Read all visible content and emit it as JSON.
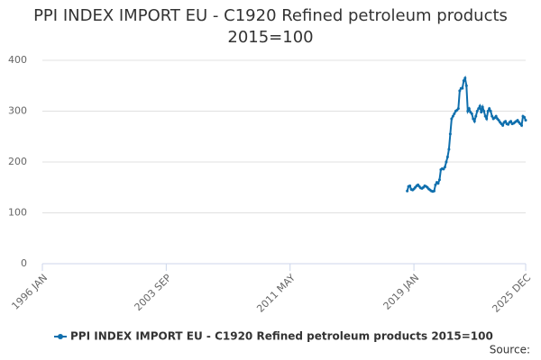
{
  "chart_data": {
    "type": "line",
    "title": "PPI INDEX IMPORT EU - C1920 Refined petroleum products 2015=100",
    "source": "Source:",
    "xlim": [
      "1996 JAN",
      "2025 DEC"
    ],
    "xticks": [
      "1996 JAN",
      "2003 SEP",
      "2011 MAY",
      "2019 JAN",
      "2025 DEC"
    ],
    "ylim": [
      0,
      400
    ],
    "yticks": [
      0,
      100,
      200,
      300,
      400
    ],
    "grid": true,
    "x": [
      "2018 AUG",
      "2018 SEP",
      "2018 OCT",
      "2018 NOV",
      "2018 DEC",
      "2019 JAN",
      "2019 FEB",
      "2019 MAR",
      "2019 APR",
      "2019 MAY",
      "2019 JUN",
      "2019 JUL",
      "2019 AUG",
      "2019 SEP",
      "2019 OCT",
      "2019 NOV",
      "2019 DEC",
      "2020 JAN",
      "2020 FEB",
      "2020 MAR",
      "2020 APR",
      "2020 MAY",
      "2020 JUN",
      "2020 JUL",
      "2020 AUG",
      "2020 SEP",
      "2020 OCT",
      "2020 NOV",
      "2020 DEC",
      "2021 JAN",
      "2021 FEB",
      "2021 MAR",
      "2021 APR",
      "2021 MAY",
      "2021 JUN",
      "2021 JUL",
      "2021 AUG",
      "2021 SEP",
      "2021 OCT",
      "2021 NOV",
      "2021 DEC",
      "2022 JAN",
      "2022 FEB",
      "2022 MAR",
      "2022 APR",
      "2022 MAY",
      "2022 JUN",
      "2022 JUL",
      "2022 AUG",
      "2022 SEP",
      "2022 OCT",
      "2022 NOV",
      "2022 DEC",
      "2023 JAN",
      "2023 FEB",
      "2023 MAR",
      "2023 APR",
      "2023 MAY",
      "2023 JUN",
      "2023 JUL",
      "2023 AUG",
      "2023 SEP",
      "2023 OCT",
      "2023 NOV",
      "2023 DEC",
      "2024 JAN",
      "2024 FEB",
      "2024 MAR",
      "2024 APR",
      "2024 MAY",
      "2024 JUN",
      "2024 JUL",
      "2024 AUG",
      "2024 SEP",
      "2024 OCT",
      "2024 NOV",
      "2024 DEC",
      "2025 JAN",
      "2025 FEB",
      "2025 MAR",
      "2025 APR",
      "2025 MAY",
      "2025 JUN",
      "2025 JUL",
      "2025 AUG",
      "2025 SEP",
      "2025 OCT",
      "2025 NOV",
      "2025 DEC"
    ],
    "series": [
      {
        "name": "PPI INDEX IMPORT EU - C1920 Refined petroleum products 2015=100",
        "color": "#0f6fad",
        "values": [
          143,
          152,
          153,
          146,
          145,
          147,
          150,
          153,
          155,
          152,
          149,
          148,
          150,
          153,
          152,
          150,
          147,
          145,
          143,
          142,
          143,
          155,
          160,
          158,
          165,
          185,
          187,
          186,
          190,
          200,
          210,
          225,
          255,
          285,
          290,
          295,
          300,
          302,
          305,
          340,
          345,
          345,
          360,
          365,
          350,
          300,
          305,
          298,
          295,
          285,
          280,
          290,
          300,
          305,
          310,
          298,
          308,
          300,
          290,
          285,
          300,
          305,
          300,
          290,
          285,
          287,
          290,
          285,
          282,
          278,
          275,
          272,
          278,
          280,
          275,
          274,
          278,
          280,
          275,
          276,
          278,
          280,
          282,
          278,
          275,
          272,
          290,
          288,
          282
        ]
      }
    ]
  }
}
